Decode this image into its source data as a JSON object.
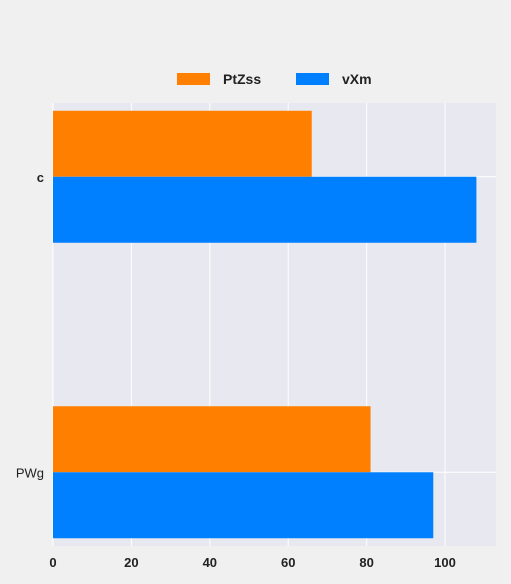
{
  "chart_data": {
    "type": "bar",
    "orientation": "horizontal",
    "categories": [
      "c",
      "PWg"
    ],
    "series": [
      {
        "name": "PtZss",
        "color": "#ff7f00",
        "values": [
          66,
          81
        ]
      },
      {
        "name": "vXm",
        "color": "#0080ff",
        "values": [
          108,
          97
        ]
      }
    ],
    "xlim": [
      0,
      113
    ],
    "xticks": [
      0,
      20,
      40,
      60,
      80,
      100
    ],
    "title": "",
    "xlabel": "",
    "ylabel": "",
    "grid": true,
    "legend_position": "top-center",
    "plot_background": "#e8e8f0",
    "page_background": "#f0f0f0"
  }
}
